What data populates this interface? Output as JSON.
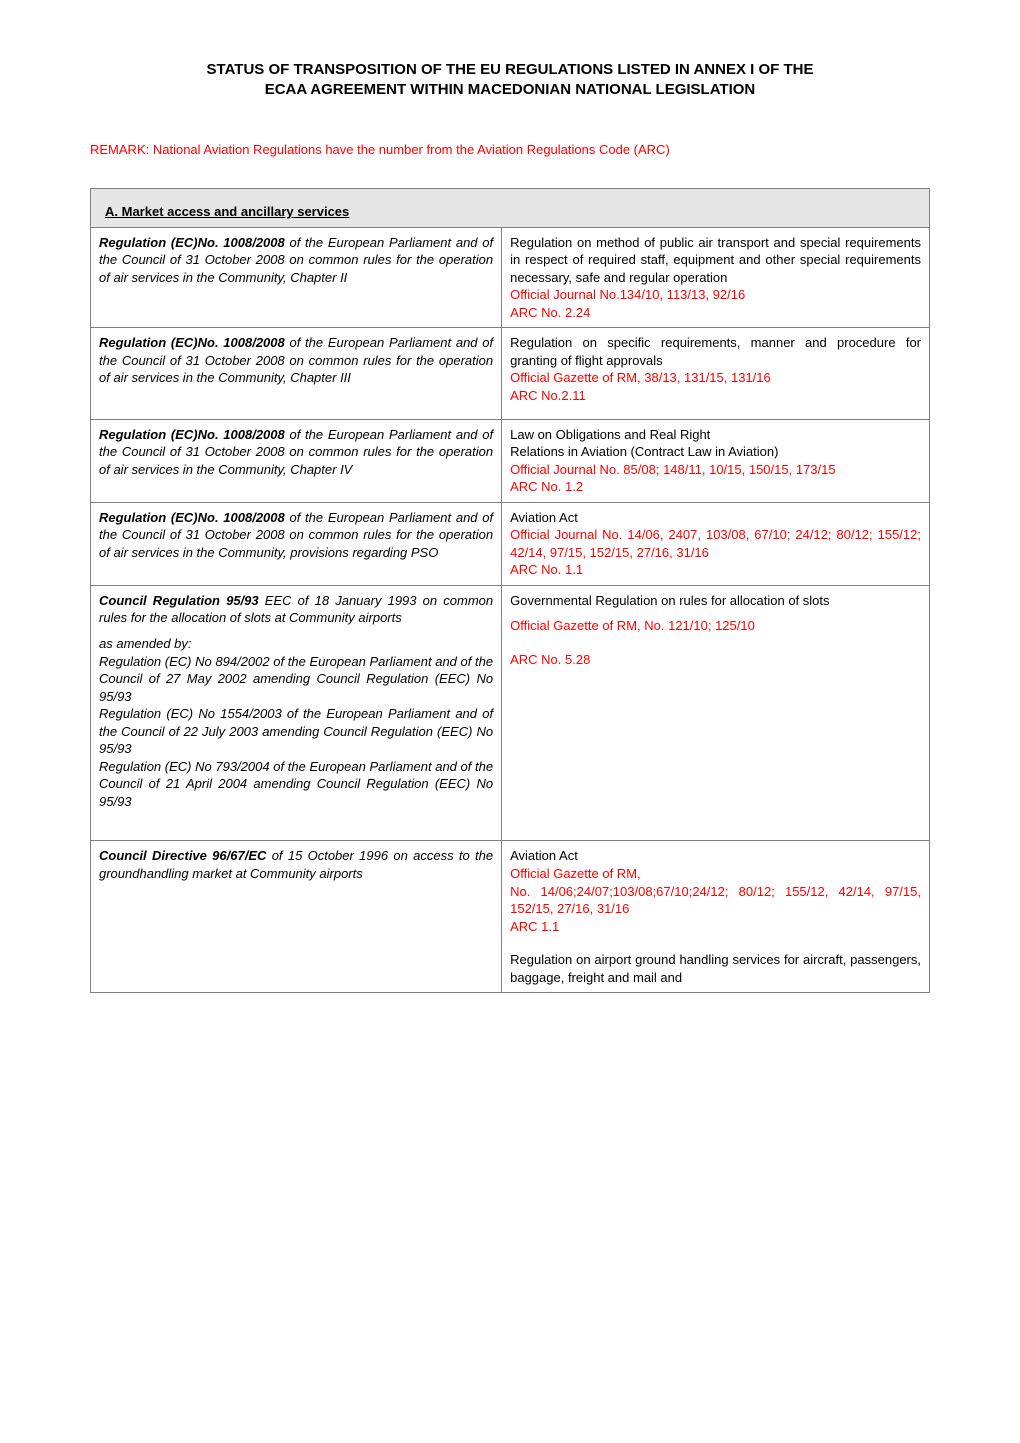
{
  "title_line1": "STATUS OF TRANSPOSITION OF THE EU REGULATIONS LISTED IN ANNEX I OF THE",
  "title_line2": "ECAA AGREEMENT WITHIN MACEDONIAN NATIONAL LEGISLATION",
  "remark": "REMARK: National Aviation Regulations have the number from the Aviation Regulations Code (ARC)",
  "section_a_header": "A. Market access and ancillary services",
  "rows": [
    {
      "left_bold": "Regulation (EC)No. 1008/2008",
      "left_rest": " of the European Parliament and of the Council of 31 October 2008 on common rules for the operation of air services in the Community, Chapter II",
      "right_black": "Regulation on method of public air transport and special requirements in respect of required staff, equipment and other special requirements necessary, safe and regular operation",
      "right_red1": "Official Journal No.134/10, 113/13, 92/16",
      "right_red2": "ARC No. 2.24"
    },
    {
      "left_bold": "Regulation (EC)No. 1008/2008",
      "left_rest": " of the European Parliament and of the Council of 31 October 2008 on common rules for the operation of air services in the Community, Chapter III",
      "right_black": "Regulation on specific requirements, manner and procedure for granting of flight approvals",
      "right_red1": "Official Gazette of RM, 38/13, 131/15, 131/16",
      "right_red2": "ARC No.2.11"
    },
    {
      "left_bold": "Regulation (EC)No. 1008/2008",
      "left_rest": " of the European Parliament and of the Council of 31 October 2008 on common rules for the operation of air services in the Community, Chapter IV",
      "right_black1": "Law on Obligations and Real Right",
      "right_black2": "Relations in Aviation (Contract Law in Aviation)",
      "right_red1": "Official Journal No. 85/08; 148/11, 10/15, 150/15, 173/15",
      "right_red2": "ARC No. 1.2"
    },
    {
      "left_bold": "Regulation (EC)No. 1008/2008",
      "left_rest": " of the European Parliament and of the Council of 31 October 2008 on common rules for the operation of air services in the Community, provisions regarding  PSO",
      "right_black": "Aviation Act",
      "right_red1": "Official Journal No. 14/06, 2407, 103/08, 67/10; 24/12; 80/12; 155/12; 42/14, 97/15, 152/15, 27/16, 31/16",
      "right_red2": "ARC No. 1.1"
    },
    {
      "left_bold": "Council Regulation 95/93",
      "left_rest1": " EEC of 18 January 1993 on common rules for the allocation of slots at Community airports",
      "left_rest2": "as amended by:",
      "left_rest3": "Regulation (EC) No 894/2002 of the European Parliament and of the Council of 27 May 2002 amending Council Regulation (EEC) No 95/93",
      "left_rest4": "Regulation (EC) No 1554/2003 of the European Parliament and of the Council of 22 July 2003 amending Council Regulation (EEC) No 95/93",
      "left_rest5": "Regulation (EC) No 793/2004 of the European Parliament and of the Council of 21 April 2004 amending Council Regulation (EEC) No 95/93",
      "right_black": "Governmental Regulation on rules for allocation of slots",
      "right_red1": "Official Gazette of RM, No. 121/10; 125/10",
      "right_red2": "ARC No. 5.28"
    },
    {
      "left_bold": "Council Directive 96/67/EC",
      "left_rest": " of 15 October 1996 on access to the groundhandling market at Community airports",
      "right_black1": "Aviation Act",
      "right_red1": "Official Gazette of RM,",
      "right_red2": "No. 14/06;24/07;103/08;67/10;24/12; 80/12; 155/12, 42/14, 97/15, 152/15, 27/16, 31/16",
      "right_red3": "ARC 1.1",
      "right_black2": "Regulation on airport ground handling services for aircraft, passengers, baggage, freight and mail and"
    }
  ]
}
